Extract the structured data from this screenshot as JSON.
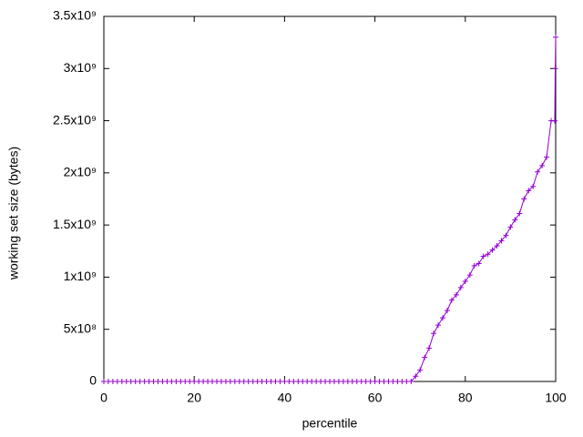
{
  "chart_data": {
    "type": "line",
    "xlabel": "percentile",
    "ylabel": "working set size (bytes)",
    "x": [
      0,
      1,
      2,
      3,
      4,
      5,
      6,
      7,
      8,
      9,
      10,
      11,
      12,
      13,
      14,
      15,
      16,
      17,
      18,
      19,
      20,
      21,
      22,
      23,
      24,
      25,
      26,
      27,
      28,
      29,
      30,
      31,
      32,
      33,
      34,
      35,
      36,
      37,
      38,
      39,
      40,
      41,
      42,
      43,
      44,
      45,
      46,
      47,
      48,
      49,
      50,
      51,
      52,
      53,
      54,
      55,
      56,
      57,
      58,
      59,
      60,
      61,
      62,
      63,
      64,
      65,
      66,
      67,
      68,
      69,
      70,
      71,
      72,
      73,
      74,
      75,
      76,
      77,
      78,
      79,
      80,
      81,
      82,
      83,
      84,
      85,
      86,
      87,
      88,
      89,
      90,
      91,
      92,
      93,
      94,
      95,
      96,
      97,
      98,
      99,
      99.8,
      99.9,
      100
    ],
    "series": [
      {
        "color": "#9400d3",
        "values": [
          0,
          0,
          0,
          0,
          0,
          0,
          0,
          0,
          0,
          0,
          0,
          0,
          0,
          0,
          0,
          0,
          0,
          0,
          0,
          0,
          0,
          0,
          0,
          0,
          0,
          0,
          0,
          0,
          0,
          0,
          0,
          0,
          0,
          0,
          0,
          0,
          0,
          0,
          0,
          0,
          0,
          0,
          0,
          0,
          0,
          0,
          0,
          0,
          0,
          0,
          0,
          0,
          0,
          0,
          0,
          0,
          0,
          0,
          0,
          0,
          0,
          0,
          0,
          0,
          0,
          0,
          0,
          0,
          0,
          50000000,
          110000000,
          230000000,
          320000000,
          460000000,
          540000000,
          610000000,
          680000000,
          780000000,
          830000000,
          900000000,
          960000000,
          1020000000,
          1110000000,
          1130000000,
          1200000000,
          1220000000,
          1260000000,
          1300000000,
          1350000000,
          1400000000,
          1480000000,
          1550000000,
          1610000000,
          1750000000,
          1830000000,
          1870000000,
          2010000000,
          2070000000,
          2150000000,
          2500000000,
          2500000000,
          3000000000,
          3300000000
        ]
      }
    ],
    "xlim": [
      0,
      100
    ],
    "xticks": [
      0,
      20,
      40,
      60,
      80,
      100
    ],
    "ylim": [
      0,
      3500000000
    ],
    "yticks": [
      0,
      {
        "value": 500000000,
        "label": "5x10⁸"
      },
      {
        "value": 1000000000,
        "label": "1x10⁹"
      },
      {
        "value": 1500000000,
        "label": "1.5x10⁹"
      },
      {
        "value": 2000000000,
        "label": "2x10⁹"
      },
      {
        "value": 2500000000,
        "label": "2.5x10⁹"
      },
      {
        "value": 3000000000,
        "label": "3x10⁹"
      },
      {
        "value": 3500000000,
        "label": "3.5x10⁹"
      }
    ],
    "grid": false
  }
}
